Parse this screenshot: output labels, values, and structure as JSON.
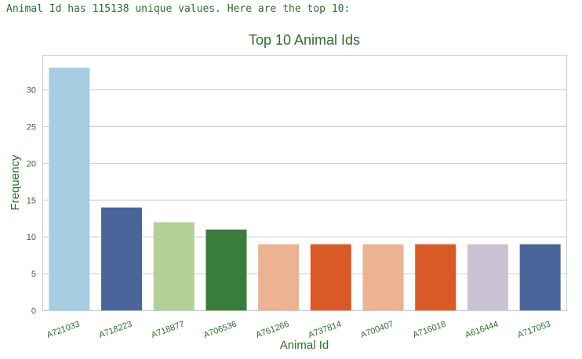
{
  "header": {
    "text": "Animal Id has 115138 unique values. Here are the top 10:"
  },
  "chart_data": {
    "type": "bar",
    "title": "Top 10 Animal Ids",
    "xlabel": "Animal Id",
    "ylabel": "Frequency",
    "categories": [
      "A721033",
      "A718223",
      "A718877",
      "A706536",
      "A761266",
      "A737814",
      "A700407",
      "A716018",
      "A616444",
      "A717053"
    ],
    "values": [
      33,
      14,
      12,
      11,
      9,
      9,
      9,
      9,
      9,
      9
    ],
    "colors": [
      "#a6cde1",
      "#4a6599",
      "#b2d196",
      "#3a7d3a",
      "#edb291",
      "#d95a27",
      "#edb291",
      "#d95a27",
      "#cbc2d3",
      "#4a6599"
    ],
    "yticks": [
      0,
      5,
      10,
      15,
      20,
      25,
      30
    ],
    "ylim": [
      0,
      34.65
    ],
    "grid": "horizontal",
    "text_color": "#2e6b2e",
    "grid_color": "#cccccc"
  }
}
